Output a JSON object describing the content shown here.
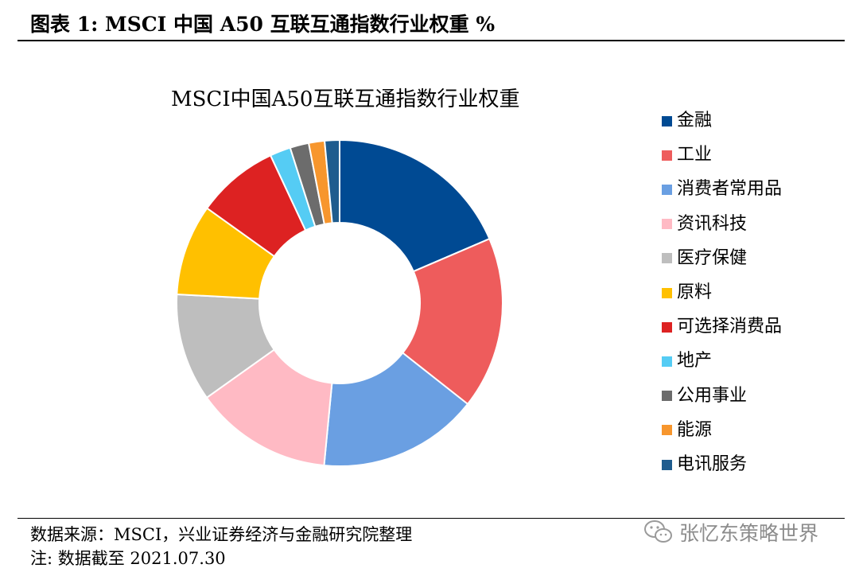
{
  "figure": {
    "title": "图表 1:  MSCI 中国 A50 互联互通指数行业权重  %"
  },
  "chart_data": {
    "type": "pie",
    "title": "MSCI中国A50互联互通指数行业权重",
    "legend_position": "right",
    "categories": [
      "金融",
      "工业",
      "消费者常用品",
      "资讯科技",
      "医疗保健",
      "原料",
      "可选择消费品",
      "地产",
      "公用事业",
      "能源",
      "电讯服务"
    ],
    "values": [
      18.9,
      17.4,
      16.2,
      13.9,
      10.9,
      9.2,
      8.3,
      2.1,
      1.9,
      1.6,
      1.5
    ],
    "colors": [
      "#004A93",
      "#EE5C5C",
      "#6A9FE2",
      "#FFBAC4",
      "#BEBEBE",
      "#FFC000",
      "#DD2222",
      "#55CCF4",
      "#6C6C6C",
      "#F7962D",
      "#1F5C8E"
    ]
  },
  "footer": {
    "source": "数据来源：MSCI，兴业证券经济与金融研究院整理",
    "note": "注:  数据截至 2021.07.30"
  },
  "watermark": {
    "text": "张忆东策略世界",
    "icon": "wechat-icon"
  }
}
